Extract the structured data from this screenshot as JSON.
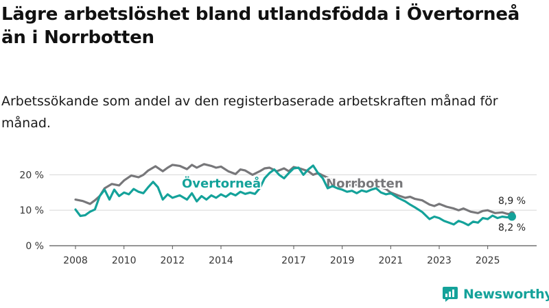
{
  "title": "Lägre arbetslöshet bland utlandsfödda i Övertorneå än i Norrbotten",
  "subtitle": "Arbetssökande som andel av den registerbaserade arbetskraften månad för månad.",
  "brand": {
    "name": "Newsworthy",
    "color": "#14a29a"
  },
  "chart_data": {
    "type": "line",
    "x_ticks": [
      "2008",
      "2010",
      "2012",
      "2014",
      "2017",
      "2019",
      "2021",
      "2023",
      "2025"
    ],
    "y_ticks": [
      "0 %",
      "10 %",
      "20 %"
    ],
    "ylim": [
      0,
      22
    ],
    "grid": true,
    "series": [
      {
        "name": "Norrbotten",
        "label": "Norrbotten",
        "end_label": "8,9 %",
        "color": "#77777a",
        "points": [
          [
            2008.0,
            13.0
          ],
          [
            2008.3,
            12.6
          ],
          [
            2008.6,
            11.8
          ],
          [
            2008.8,
            12.8
          ],
          [
            2009.0,
            14.0
          ],
          [
            2009.2,
            16.2
          ],
          [
            2009.5,
            17.4
          ],
          [
            2009.8,
            17.0
          ],
          [
            2010.0,
            18.4
          ],
          [
            2010.3,
            19.8
          ],
          [
            2010.6,
            19.3
          ],
          [
            2010.8,
            20.0
          ],
          [
            2011.0,
            21.2
          ],
          [
            2011.3,
            22.4
          ],
          [
            2011.6,
            21.0
          ],
          [
            2011.8,
            22.0
          ],
          [
            2012.0,
            22.8
          ],
          [
            2012.3,
            22.5
          ],
          [
            2012.6,
            21.6
          ],
          [
            2012.8,
            22.8
          ],
          [
            2013.0,
            22.0
          ],
          [
            2013.3,
            23.0
          ],
          [
            2013.6,
            22.5
          ],
          [
            2013.8,
            22.0
          ],
          [
            2014.0,
            22.3
          ],
          [
            2014.3,
            21.0
          ],
          [
            2014.6,
            20.2
          ],
          [
            2014.8,
            21.5
          ],
          [
            2015.0,
            21.2
          ],
          [
            2015.3,
            20.0
          ],
          [
            2015.6,
            21.0
          ],
          [
            2015.8,
            21.8
          ],
          [
            2016.0,
            22.0
          ],
          [
            2016.3,
            21.0
          ],
          [
            2016.6,
            21.8
          ],
          [
            2016.8,
            21.0
          ],
          [
            2017.0,
            22.2
          ],
          [
            2017.3,
            21.7
          ],
          [
            2017.6,
            21.0
          ],
          [
            2017.8,
            20.0
          ],
          [
            2018.0,
            20.5
          ],
          [
            2018.3,
            19.5
          ],
          [
            2018.6,
            18.5
          ],
          [
            2018.8,
            18.0
          ],
          [
            2019.0,
            17.5
          ],
          [
            2019.3,
            17.0
          ],
          [
            2019.6,
            17.2
          ],
          [
            2019.8,
            17.0
          ],
          [
            2020.0,
            16.8
          ],
          [
            2020.3,
            17.4
          ],
          [
            2020.6,
            16.5
          ],
          [
            2020.8,
            16.0
          ],
          [
            2021.0,
            15.0
          ],
          [
            2021.3,
            14.2
          ],
          [
            2021.6,
            13.5
          ],
          [
            2021.8,
            13.8
          ],
          [
            2022.0,
            13.2
          ],
          [
            2022.3,
            12.8
          ],
          [
            2022.6,
            11.6
          ],
          [
            2022.8,
            11.2
          ],
          [
            2023.0,
            11.8
          ],
          [
            2023.3,
            11.0
          ],
          [
            2023.6,
            10.5
          ],
          [
            2023.8,
            10.0
          ],
          [
            2024.0,
            10.5
          ],
          [
            2024.3,
            9.6
          ],
          [
            2024.6,
            9.2
          ],
          [
            2024.8,
            9.8
          ],
          [
            2025.0,
            10.0
          ],
          [
            2025.3,
            9.2
          ],
          [
            2025.6,
            9.4
          ],
          [
            2025.8,
            9.0
          ],
          [
            2026.0,
            8.9
          ]
        ]
      },
      {
        "name": "Övertorneå",
        "label": "Övertorneå",
        "end_label": "8,2 %",
        "color": "#14a29a",
        "points": [
          [
            2008.0,
            10.2
          ],
          [
            2008.2,
            8.4
          ],
          [
            2008.4,
            8.6
          ],
          [
            2008.6,
            9.6
          ],
          [
            2008.8,
            10.2
          ],
          [
            2009.0,
            14.0
          ],
          [
            2009.2,
            15.8
          ],
          [
            2009.4,
            13.0
          ],
          [
            2009.6,
            15.8
          ],
          [
            2009.8,
            14.0
          ],
          [
            2010.0,
            15.0
          ],
          [
            2010.2,
            14.5
          ],
          [
            2010.4,
            16.0
          ],
          [
            2010.6,
            15.2
          ],
          [
            2010.8,
            14.8
          ],
          [
            2011.0,
            16.5
          ],
          [
            2011.2,
            18.0
          ],
          [
            2011.4,
            16.5
          ],
          [
            2011.6,
            13.0
          ],
          [
            2011.8,
            14.5
          ],
          [
            2012.0,
            13.5
          ],
          [
            2012.3,
            14.2
          ],
          [
            2012.6,
            13.0
          ],
          [
            2012.8,
            14.8
          ],
          [
            2013.0,
            12.5
          ],
          [
            2013.2,
            14.0
          ],
          [
            2013.4,
            13.0
          ],
          [
            2013.6,
            14.2
          ],
          [
            2013.8,
            13.5
          ],
          [
            2014.0,
            14.5
          ],
          [
            2014.2,
            13.8
          ],
          [
            2014.4,
            14.8
          ],
          [
            2014.6,
            14.2
          ],
          [
            2014.8,
            15.2
          ],
          [
            2015.0,
            14.6
          ],
          [
            2015.2,
            15.0
          ],
          [
            2015.4,
            14.6
          ],
          [
            2015.6,
            16.2
          ],
          [
            2015.8,
            19.0
          ],
          [
            2016.0,
            20.5
          ],
          [
            2016.2,
            21.5
          ],
          [
            2016.4,
            20.0
          ],
          [
            2016.6,
            19.0
          ],
          [
            2016.8,
            20.5
          ],
          [
            2017.0,
            21.8
          ],
          [
            2017.2,
            22.0
          ],
          [
            2017.4,
            20.0
          ],
          [
            2017.6,
            21.5
          ],
          [
            2017.8,
            22.6
          ],
          [
            2018.0,
            20.5
          ],
          [
            2018.2,
            19.0
          ],
          [
            2018.4,
            16.2
          ],
          [
            2018.6,
            16.8
          ],
          [
            2018.8,
            16.2
          ],
          [
            2019.0,
            15.8
          ],
          [
            2019.2,
            15.2
          ],
          [
            2019.4,
            15.5
          ],
          [
            2019.6,
            14.8
          ],
          [
            2019.8,
            15.6
          ],
          [
            2020.0,
            15.2
          ],
          [
            2020.2,
            15.8
          ],
          [
            2020.4,
            16.2
          ],
          [
            2020.6,
            15.0
          ],
          [
            2020.8,
            14.5
          ],
          [
            2021.0,
            14.8
          ],
          [
            2021.3,
            13.5
          ],
          [
            2021.6,
            12.5
          ],
          [
            2021.8,
            11.6
          ],
          [
            2022.0,
            10.8
          ],
          [
            2022.3,
            9.5
          ],
          [
            2022.6,
            7.5
          ],
          [
            2022.8,
            8.2
          ],
          [
            2023.0,
            7.8
          ],
          [
            2023.2,
            7.0
          ],
          [
            2023.4,
            6.5
          ],
          [
            2023.6,
            6.0
          ],
          [
            2023.8,
            7.0
          ],
          [
            2024.0,
            6.5
          ],
          [
            2024.2,
            5.8
          ],
          [
            2024.4,
            6.8
          ],
          [
            2024.6,
            6.5
          ],
          [
            2024.8,
            7.8
          ],
          [
            2025.0,
            7.5
          ],
          [
            2025.2,
            8.5
          ],
          [
            2025.4,
            7.8
          ],
          [
            2025.6,
            8.2
          ],
          [
            2025.8,
            8.0
          ],
          [
            2026.0,
            8.2
          ]
        ]
      }
    ]
  }
}
